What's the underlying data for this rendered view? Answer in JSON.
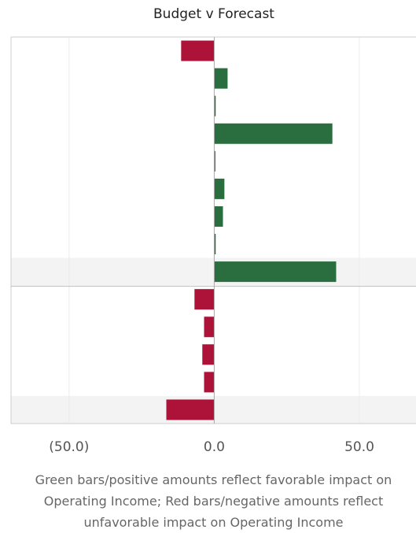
{
  "chart_data": {
    "type": "bar",
    "orientation": "horizontal",
    "title": "Budget v Forecast",
    "categories": [
      null,
      null,
      null,
      null,
      null,
      null,
      null,
      null,
      null,
      null,
      null,
      null,
      null,
      null
    ],
    "values": [
      -11.4,
      4.6,
      0.5,
      40.7,
      0.4,
      3.5,
      3.0,
      0.5,
      42.0,
      -6.8,
      -3.5,
      -4.1,
      -3.5,
      -16.5
    ],
    "positive_color": "#2a6e3f",
    "negative_color": "#ad1238",
    "xlim": [
      -70,
      69.5
    ],
    "xticks": [
      {
        "value": -50,
        "label": "(50.0)"
      },
      {
        "value": 0,
        "label": "0.0"
      },
      {
        "value": 50,
        "label": "50.0"
      }
    ],
    "grid": true,
    "note": "Green bars/positive amounts reflect favorable impact on Operating Income; Red bars/negative amounts reflect unfavorable impact on Operating Income"
  }
}
